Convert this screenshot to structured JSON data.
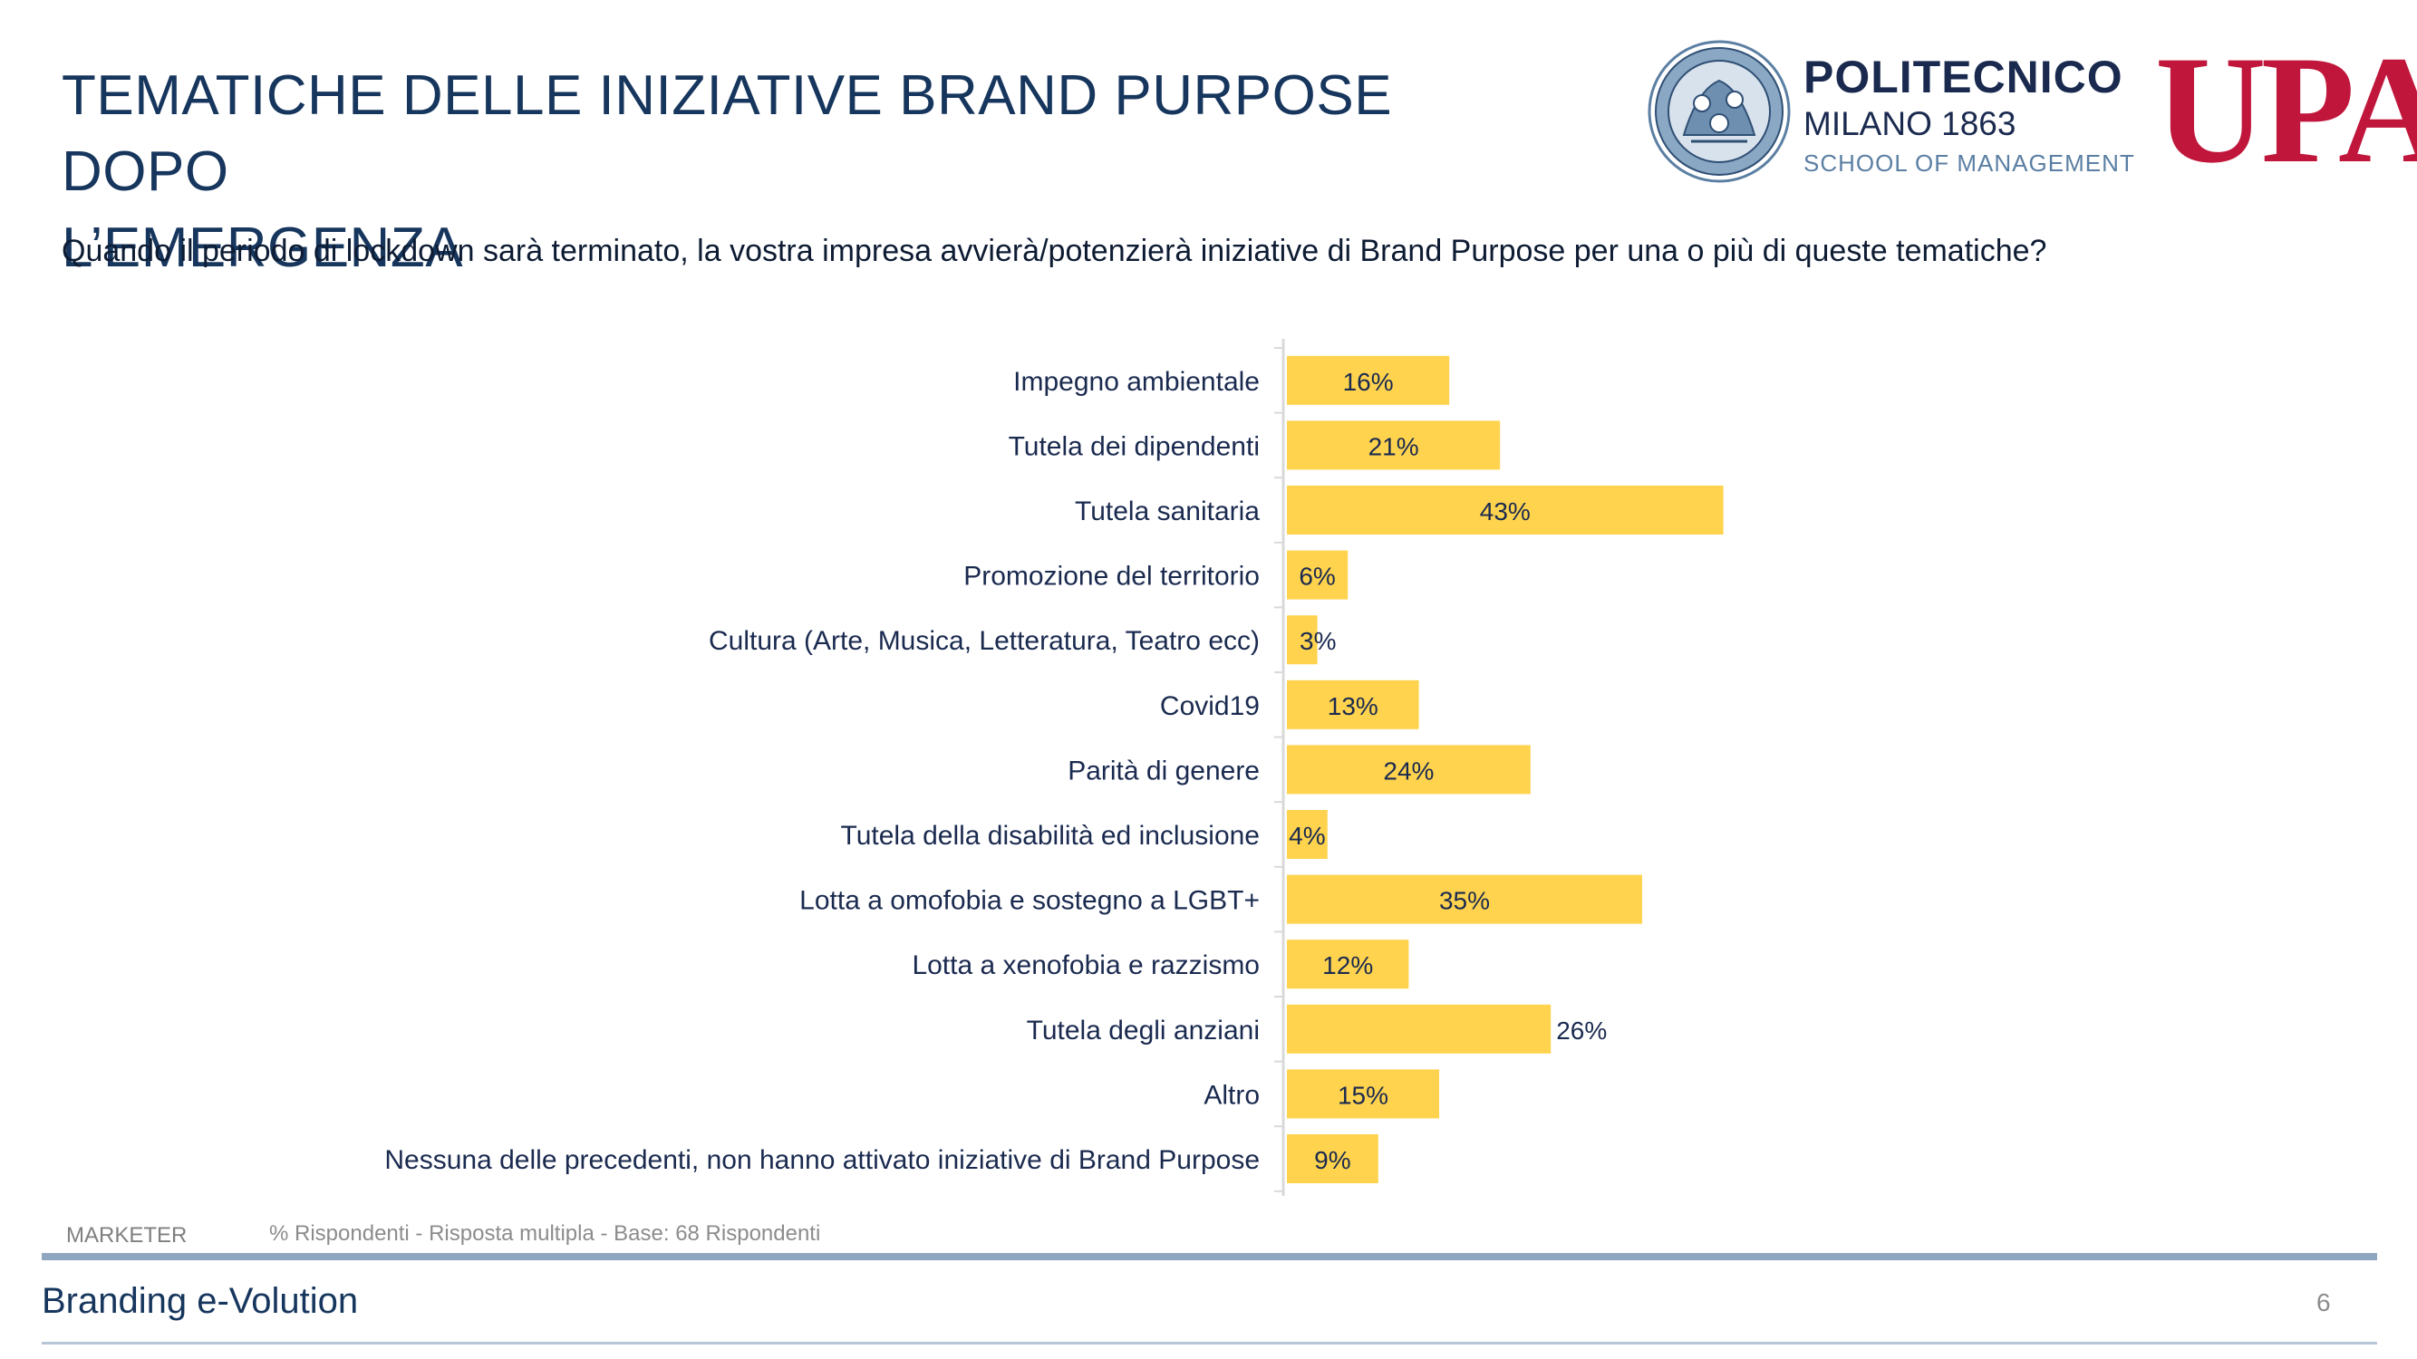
{
  "header": {
    "title_line1": "TEMATICHE DELLE INIZIATIVE BRAND PURPOSE DOPO",
    "title_line2": "L’EMERGENZA",
    "subtitle": "Quando il periodo di lockdown sarà terminato, la vostra impresa avvierà/potenzierà iniziative di Brand Purpose per una o più di queste tematiche?"
  },
  "logos": {
    "polimi_line1": "POLITECNICO",
    "polimi_line2": "MILANO 1863",
    "polimi_line3": "SCHOOL OF MANAGEMENT",
    "upa": "UPA"
  },
  "chart_data": {
    "type": "bar",
    "orientation": "horizontal",
    "categories": [
      "Impegno ambientale",
      "Tutela dei dipendenti",
      "Tutela sanitaria",
      "Promozione del territorio",
      "Cultura (Arte, Musica, Letteratura, Teatro ecc)",
      "Covid19",
      "Parità di genere",
      "Tutela della disabilità ed inclusione",
      "Lotta a omofobia e sostegno a LGBT+",
      "Lotta a xenofobia e razzismo",
      "Tutela degli anziani",
      "Altro",
      "Nessuna delle precedenti, non hanno attivato iniziative di Brand Purpose"
    ],
    "values": [
      16,
      21,
      43,
      6,
      3,
      13,
      24,
      4,
      35,
      12,
      26,
      15,
      9
    ],
    "labels": [
      "16%",
      "21%",
      "43%",
      "6%",
      "3%",
      "13%",
      "24%",
      "4%",
      "35%",
      "12%",
      "26%",
      "15%",
      "9%"
    ],
    "xlim": [
      0,
      100
    ],
    "grid": false,
    "bar_color": "#ffd34e",
    "axis_color": "#d9d9d9",
    "text_color": "#1a2a4f"
  },
  "footer": {
    "tag": "MARKETER",
    "note": "% Rispondenti - Risposta multipla - Base: 68 Rispondenti",
    "title": "Branding e-Volution",
    "page": "6"
  }
}
